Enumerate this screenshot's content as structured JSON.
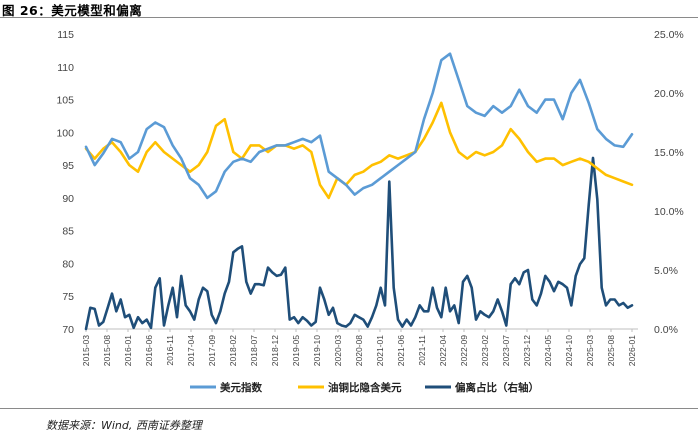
{
  "figure": {
    "title": "图 26：美元模型和偏离",
    "source": "数据来源：Wind, 西南证券整理"
  },
  "chart_data": {
    "type": "line",
    "left_axis": {
      "min": 70,
      "max": 115,
      "ticks": [
        "70",
        "75",
        "80",
        "85",
        "90",
        "95",
        "100",
        "105",
        "110",
        "115"
      ]
    },
    "right_axis": {
      "min": 0,
      "max": 25,
      "ticks": [
        "0.0%",
        "5.0%",
        "10.0%",
        "15.0%",
        "20.0%",
        "25.0%"
      ]
    },
    "x_labels": [
      "2015-03",
      "2015-08",
      "2016-01",
      "2016-06",
      "2016-11",
      "2017-04",
      "2017-09",
      "2018-02",
      "2018-07",
      "2018-12",
      "2019-05",
      "2019-10",
      "2020-03",
      "2020-08",
      "2021-01",
      "2021-06",
      "2021-11",
      "2022-04",
      "2022-09",
      "2023-02",
      "2023-07",
      "2023-12",
      "2024-05",
      "2024-10",
      "2025-03",
      "2025-08",
      "2026-01"
    ],
    "series": [
      {
        "name": "美元指数",
        "color": "#5b9bd5",
        "axis": "left",
        "points": [
          [
            0,
            97.8
          ],
          [
            2,
            95
          ],
          [
            4,
            96.8
          ],
          [
            6,
            99
          ],
          [
            8,
            98.5
          ],
          [
            10,
            96
          ],
          [
            12,
            97
          ],
          [
            14,
            100.5
          ],
          [
            16,
            101.5
          ],
          [
            18,
            100.8
          ],
          [
            20,
            98
          ],
          [
            22,
            96
          ],
          [
            24,
            93
          ],
          [
            26,
            92
          ],
          [
            28,
            90
          ],
          [
            30,
            91
          ],
          [
            32,
            94
          ],
          [
            34,
            95.5
          ],
          [
            36,
            96
          ],
          [
            38,
            95.5
          ],
          [
            40,
            97
          ],
          [
            42,
            97.5
          ],
          [
            44,
            98
          ],
          [
            46,
            98
          ],
          [
            48,
            98.5
          ],
          [
            50,
            99
          ],
          [
            52,
            98.5
          ],
          [
            54,
            99.5
          ],
          [
            56,
            94
          ],
          [
            58,
            93
          ],
          [
            60,
            92
          ],
          [
            62,
            90.5
          ],
          [
            64,
            91.5
          ],
          [
            66,
            92
          ],
          [
            68,
            93
          ],
          [
            70,
            94
          ],
          [
            72,
            95
          ],
          [
            74,
            96
          ],
          [
            76,
            97
          ],
          [
            78,
            102
          ],
          [
            80,
            106
          ],
          [
            82,
            111
          ],
          [
            84,
            112
          ],
          [
            86,
            108
          ],
          [
            88,
            104
          ],
          [
            90,
            103
          ],
          [
            92,
            102.5
          ],
          [
            94,
            104
          ],
          [
            96,
            103
          ],
          [
            98,
            104
          ],
          [
            100,
            106.5
          ],
          [
            102,
            104
          ],
          [
            104,
            103
          ],
          [
            106,
            105
          ],
          [
            108,
            105
          ],
          [
            110,
            102
          ],
          [
            112,
            106
          ],
          [
            114,
            108
          ],
          [
            116,
            104.5
          ],
          [
            118,
            100.5
          ],
          [
            120,
            99
          ],
          [
            122,
            98
          ],
          [
            124,
            97.8
          ],
          [
            126,
            99.7
          ]
        ]
      },
      {
        "name": "油铜比隐含美元",
        "color": "#ffc000",
        "axis": "left",
        "points": [
          [
            0,
            97.5
          ],
          [
            2,
            96
          ],
          [
            4,
            97.5
          ],
          [
            6,
            98.5
          ],
          [
            8,
            97
          ],
          [
            10,
            95
          ],
          [
            12,
            94
          ],
          [
            14,
            97
          ],
          [
            16,
            98.5
          ],
          [
            18,
            97
          ],
          [
            20,
            96
          ],
          [
            22,
            95
          ],
          [
            24,
            94
          ],
          [
            26,
            95
          ],
          [
            28,
            97
          ],
          [
            30,
            101
          ],
          [
            32,
            102
          ],
          [
            34,
            97
          ],
          [
            36,
            96
          ],
          [
            38,
            98
          ],
          [
            40,
            98
          ],
          [
            42,
            97
          ],
          [
            44,
            98
          ],
          [
            46,
            98
          ],
          [
            48,
            97.5
          ],
          [
            50,
            98
          ],
          [
            52,
            97
          ],
          [
            54,
            92
          ],
          [
            56,
            90
          ],
          [
            58,
            93
          ],
          [
            60,
            92
          ],
          [
            62,
            93.5
          ],
          [
            64,
            94
          ],
          [
            66,
            95
          ],
          [
            68,
            95.5
          ],
          [
            70,
            96.5
          ],
          [
            72,
            96
          ],
          [
            74,
            96.5
          ],
          [
            76,
            97
          ],
          [
            78,
            99
          ],
          [
            80,
            101.5
          ],
          [
            82,
            104.5
          ],
          [
            84,
            100
          ],
          [
            86,
            97
          ],
          [
            88,
            96
          ],
          [
            90,
            97
          ],
          [
            92,
            96.5
          ],
          [
            94,
            97
          ],
          [
            96,
            98
          ],
          [
            98,
            100.5
          ],
          [
            100,
            99
          ],
          [
            102,
            97
          ],
          [
            104,
            95.5
          ],
          [
            106,
            96
          ],
          [
            108,
            96
          ],
          [
            110,
            95
          ],
          [
            112,
            95.5
          ],
          [
            114,
            96
          ],
          [
            116,
            95.5
          ],
          [
            118,
            94.5
          ],
          [
            120,
            93.5
          ],
          [
            122,
            93
          ],
          [
            124,
            92.5
          ],
          [
            126,
            92
          ]
        ]
      },
      {
        "name": "偏离占比（右轴）",
        "color": "#1f4e79",
        "axis": "right",
        "points": [
          [
            0,
            0
          ],
          [
            1,
            1.8
          ],
          [
            2,
            1.7
          ],
          [
            3,
            0.3
          ],
          [
            4,
            0.6
          ],
          [
            5,
            1.8
          ],
          [
            6,
            3.0
          ],
          [
            7,
            1.5
          ],
          [
            8,
            2.5
          ],
          [
            9,
            1.0
          ],
          [
            10,
            1.2
          ],
          [
            11,
            0.1
          ],
          [
            12,
            1.0
          ],
          [
            13,
            0.5
          ],
          [
            14,
            0.8
          ],
          [
            15,
            0.1
          ],
          [
            16,
            3.5
          ],
          [
            17,
            4.3
          ],
          [
            18,
            0.3
          ],
          [
            19,
            2.0
          ],
          [
            20,
            3.5
          ],
          [
            21,
            1.0
          ],
          [
            22,
            4.5
          ],
          [
            23,
            2.0
          ],
          [
            24,
            1.5
          ],
          [
            25,
            0.8
          ],
          [
            26,
            2.5
          ],
          [
            27,
            3.5
          ],
          [
            28,
            3.2
          ],
          [
            29,
            1.2
          ],
          [
            30,
            0.5
          ],
          [
            31,
            1.5
          ],
          [
            32,
            3.0
          ],
          [
            33,
            4.0
          ],
          [
            34,
            6.5
          ],
          [
            35,
            6.8
          ],
          [
            36,
            7.0
          ],
          [
            37,
            4.0
          ],
          [
            38,
            3.0
          ],
          [
            39,
            3.8
          ],
          [
            40,
            3.8
          ],
          [
            41,
            3.7
          ],
          [
            42,
            5.2
          ],
          [
            43,
            4.8
          ],
          [
            44,
            4.5
          ],
          [
            45,
            4.6
          ],
          [
            46,
            5.2
          ],
          [
            47,
            0.8
          ],
          [
            48,
            1.0
          ],
          [
            49,
            0.5
          ],
          [
            50,
            1.0
          ],
          [
            51,
            0.7
          ],
          [
            52,
            0.3
          ],
          [
            53,
            0.6
          ],
          [
            54,
            3.5
          ],
          [
            55,
            2.5
          ],
          [
            56,
            1.2
          ],
          [
            57,
            1.8
          ],
          [
            58,
            0.5
          ],
          [
            59,
            0.3
          ],
          [
            60,
            0.2
          ],
          [
            61,
            0.5
          ],
          [
            62,
            1.2
          ],
          [
            63,
            1.0
          ],
          [
            64,
            0.8
          ],
          [
            65,
            0.2
          ],
          [
            66,
            1.0
          ],
          [
            67,
            2.0
          ],
          [
            68,
            3.5
          ],
          [
            69,
            2.0
          ],
          [
            70,
            12.5
          ],
          [
            71,
            3.5
          ],
          [
            72,
            0.8
          ],
          [
            73,
            0.2
          ],
          [
            74,
            0.8
          ],
          [
            75,
            0.3
          ],
          [
            76,
            1.0
          ],
          [
            77,
            2.0
          ],
          [
            78,
            1.5
          ],
          [
            79,
            1.5
          ],
          [
            80,
            3.5
          ],
          [
            81,
            1.8
          ],
          [
            82,
            1.0
          ],
          [
            83,
            3.5
          ],
          [
            84,
            1.5
          ],
          [
            85,
            2.0
          ],
          [
            86,
            0.5
          ],
          [
            87,
            4.0
          ],
          [
            88,
            4.5
          ],
          [
            89,
            3.5
          ],
          [
            90,
            0.8
          ],
          [
            91,
            1.5
          ],
          [
            92,
            1.2
          ],
          [
            93,
            1.0
          ],
          [
            94,
            1.5
          ],
          [
            95,
            2.5
          ],
          [
            96,
            1.5
          ],
          [
            97,
            0.3
          ],
          [
            98,
            3.8
          ],
          [
            99,
            4.3
          ],
          [
            100,
            3.8
          ],
          [
            101,
            4.8
          ],
          [
            102,
            5.0
          ],
          [
            103,
            2.5
          ],
          [
            104,
            2.0
          ],
          [
            105,
            3.0
          ],
          [
            106,
            4.5
          ],
          [
            107,
            4.0
          ],
          [
            108,
            3.2
          ],
          [
            109,
            4.0
          ],
          [
            110,
            3.8
          ],
          [
            111,
            3.5
          ],
          [
            112,
            2.0
          ],
          [
            113,
            4.5
          ],
          [
            114,
            5.5
          ],
          [
            115,
            6.0
          ],
          [
            116,
            10.5
          ],
          [
            117,
            14.5
          ],
          [
            118,
            11.0
          ],
          [
            119,
            3.5
          ],
          [
            120,
            2.0
          ],
          [
            121,
            2.5
          ],
          [
            122,
            2.5
          ],
          [
            123,
            2.0
          ],
          [
            124,
            2.2
          ],
          [
            125,
            1.8
          ],
          [
            126,
            2.0
          ]
        ]
      }
    ]
  }
}
